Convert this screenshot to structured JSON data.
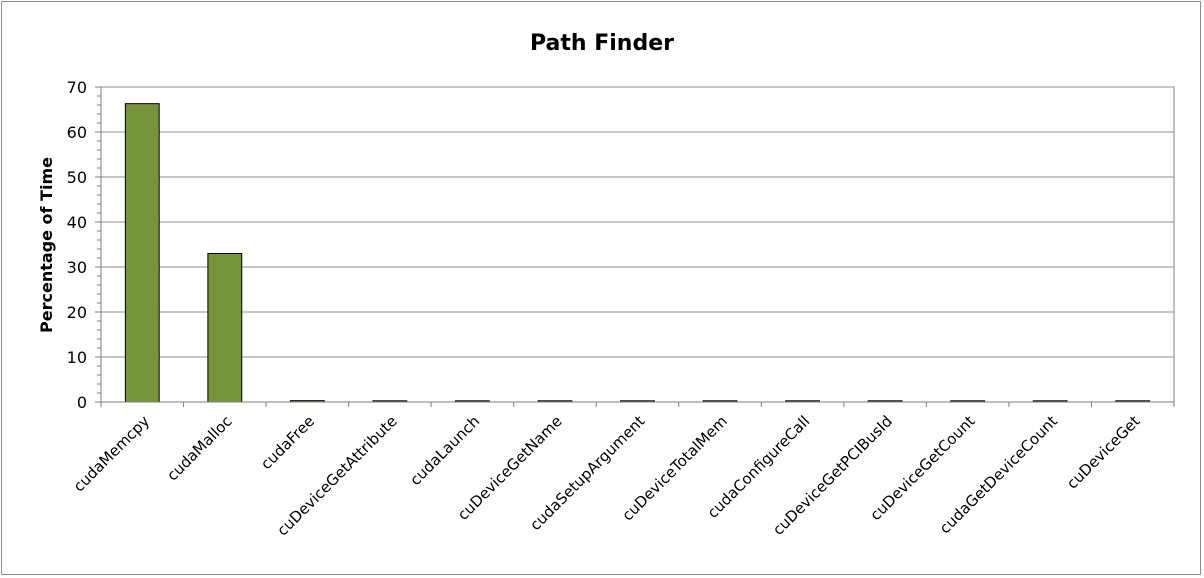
{
  "chart_data": {
    "type": "bar",
    "title": "Path Finder",
    "xlabel": "",
    "ylabel": "Percentage of Time",
    "ylim": [
      0,
      70
    ],
    "yticks": [
      0,
      10,
      20,
      30,
      40,
      50,
      60,
      70
    ],
    "grid": true,
    "legend": "none",
    "bar_color": "#77933c",
    "bar_edge_color": "#000000",
    "categories": [
      "cudaMemcpy",
      "cudaMalloc",
      "cudaFree",
      "cuDeviceGetAttribute",
      "cudaLaunch",
      "cuDeviceGetName",
      "cudaSetupArgument",
      "cuDeviceTotalMem",
      "cudaConfigureCall",
      "cuDeviceGetPCIBusId",
      "cuDeviceGetCount",
      "cudaGetDeviceCount",
      "cuDeviceGet"
    ],
    "values": [
      66.3,
      33.0,
      0.3,
      0.2,
      0.1,
      0.05,
      0.05,
      0.05,
      0.03,
      0.02,
      0.01,
      0.01,
      0.01
    ]
  }
}
